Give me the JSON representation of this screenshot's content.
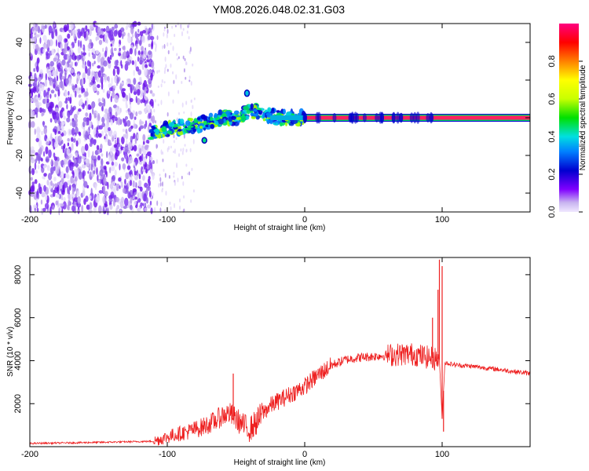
{
  "title": "YM08.2026.048.02.31.G03",
  "chart_data": [
    {
      "type": "heatmap",
      "title": "",
      "xlabel": "Height of straight line (km)",
      "ylabel": "Frequency (Hz)",
      "xlim": [
        -200,
        164
      ],
      "ylim": [
        -50,
        50
      ],
      "xticks": [
        -200,
        -100,
        0,
        100
      ],
      "yticks": [
        -40,
        -20,
        0,
        20,
        40
      ],
      "colorbar": {
        "label": "Normalized spectral amplitude",
        "range": [
          0,
          1
        ],
        "ticks": [
          "0.0",
          "0.2",
          "0.4",
          "0.6",
          "0.8"
        ],
        "tick_values": [
          0.0,
          0.2,
          0.4,
          0.6,
          0.8
        ],
        "colors": [
          "#c8b4f0",
          "#0000d0",
          "#0080ff",
          "#00e0e0",
          "#00e000",
          "#c8ff00",
          "#ffff00",
          "#ff8000",
          "#ff0000",
          "#ff0080"
        ]
      },
      "features": {
        "noise_region_x": [
          -200,
          -110
        ],
        "scattered_region_x": [
          -110,
          -80
        ],
        "signal_ridge": {
          "x": [
            -112,
            -100,
            -90,
            -80,
            -70,
            -60,
            -50,
            -45,
            -40,
            -30,
            -20,
            -10,
            0,
            50,
            95,
            164
          ],
          "y": [
            -8,
            -6,
            -5,
            -4,
            -2,
            0,
            0,
            2,
            4,
            2,
            0,
            0,
            0,
            0,
            0,
            0
          ]
        },
        "constant_line_x": [
          0,
          164
        ],
        "constant_line_y": 0
      }
    },
    {
      "type": "line",
      "title": "",
      "xlabel": "Height of straight line (km)",
      "ylabel": "SNR (10 * v/v)",
      "xlim": [
        -200,
        164
      ],
      "ylim": [
        0,
        8800
      ],
      "xticks": [
        -200,
        -100,
        0,
        100
      ],
      "yticks": [
        2000,
        4000,
        6000,
        8000
      ],
      "series": [
        {
          "name": "SNR",
          "color": "#ee2020",
          "x": [
            -200,
            -150,
            -110,
            -100,
            -95,
            -85,
            -75,
            -65,
            -60,
            -55,
            -50,
            -45,
            -40,
            -35,
            -30,
            -25,
            -20,
            -10,
            0,
            10,
            20,
            30,
            40,
            50,
            60,
            70,
            80,
            90,
            95,
            98,
            100,
            102,
            110,
            120,
            140,
            164
          ],
          "y": [
            150,
            200,
            250,
            450,
            550,
            700,
            900,
            1200,
            1450,
            1550,
            1300,
            1000,
            800,
            1150,
            1600,
            1900,
            2100,
            2450,
            2800,
            3350,
            3800,
            4050,
            4150,
            4200,
            4250,
            4300,
            4300,
            4150,
            4100,
            4050,
            1300,
            3900,
            3800,
            3750,
            3600,
            3400
          ]
        }
      ],
      "spikes": [
        {
          "x": -52,
          "y": 3400
        },
        {
          "x": 93,
          "y": 6000
        },
        {
          "x": 97,
          "y": 7300
        },
        {
          "x": 98,
          "y": 8700
        },
        {
          "x": 100,
          "y": 8400
        },
        {
          "x": 101,
          "y": 700
        }
      ]
    }
  ]
}
